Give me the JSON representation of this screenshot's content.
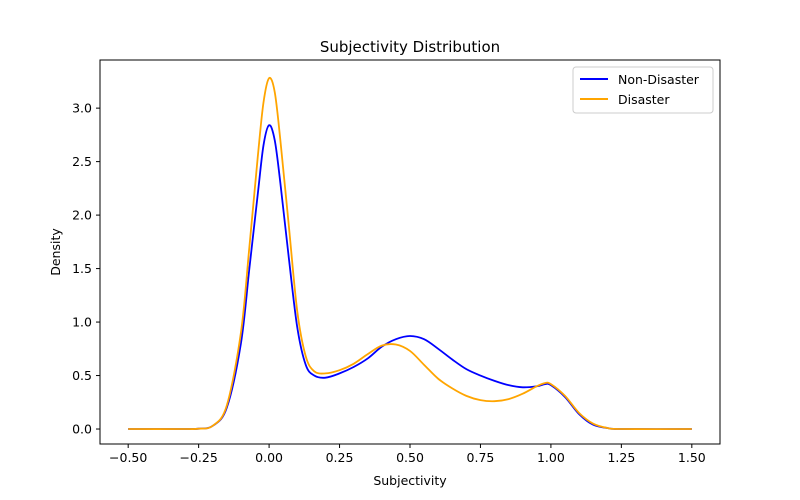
{
  "chart_data": {
    "type": "line",
    "title": "Subjectivity Distribution",
    "xlabel": "Subjectivity",
    "ylabel": "Density",
    "xlim": [
      -0.6,
      1.6
    ],
    "ylim": [
      -0.14,
      3.45
    ],
    "xticks": [
      -0.5,
      -0.25,
      0.0,
      0.25,
      0.5,
      0.75,
      1.0,
      1.25,
      1.5
    ],
    "xtick_labels": [
      "−0.50",
      "−0.25",
      "0.00",
      "0.25",
      "0.50",
      "0.75",
      "1.00",
      "1.25",
      "1.50"
    ],
    "yticks": [
      0.0,
      0.5,
      1.0,
      1.5,
      2.0,
      2.5,
      3.0
    ],
    "ytick_labels": [
      "0.0",
      "0.5",
      "1.0",
      "1.5",
      "2.0",
      "2.5",
      "3.0"
    ],
    "grid": false,
    "legend_position": "top-right",
    "x": [
      -0.5,
      -0.3,
      -0.25,
      -0.2,
      -0.15,
      -0.1,
      -0.07,
      -0.04,
      -0.02,
      0.0,
      0.02,
      0.04,
      0.07,
      0.1,
      0.13,
      0.16,
      0.2,
      0.25,
      0.3,
      0.35,
      0.4,
      0.45,
      0.5,
      0.55,
      0.6,
      0.65,
      0.7,
      0.75,
      0.8,
      0.85,
      0.9,
      0.95,
      0.98,
      1.0,
      1.05,
      1.1,
      1.15,
      1.2,
      1.25,
      1.5
    ],
    "series": [
      {
        "name": "Non-Disaster",
        "color": "#0000ff",
        "values": [
          0.0,
          0.0,
          0.003,
          0.03,
          0.2,
          0.8,
          1.5,
          2.2,
          2.65,
          2.84,
          2.7,
          2.3,
          1.6,
          0.95,
          0.6,
          0.5,
          0.48,
          0.52,
          0.58,
          0.66,
          0.77,
          0.84,
          0.87,
          0.84,
          0.75,
          0.65,
          0.56,
          0.5,
          0.45,
          0.41,
          0.39,
          0.4,
          0.42,
          0.41,
          0.3,
          0.14,
          0.04,
          0.01,
          0.0,
          0.0
        ]
      },
      {
        "name": "Disaster",
        "color": "#ffa500",
        "values": [
          0.0,
          0.0,
          0.003,
          0.03,
          0.22,
          0.9,
          1.7,
          2.55,
          3.05,
          3.28,
          3.15,
          2.7,
          1.9,
          1.1,
          0.68,
          0.54,
          0.52,
          0.55,
          0.61,
          0.7,
          0.78,
          0.79,
          0.73,
          0.6,
          0.47,
          0.38,
          0.31,
          0.27,
          0.26,
          0.28,
          0.33,
          0.4,
          0.43,
          0.42,
          0.31,
          0.15,
          0.05,
          0.01,
          0.0,
          0.0
        ]
      }
    ]
  }
}
